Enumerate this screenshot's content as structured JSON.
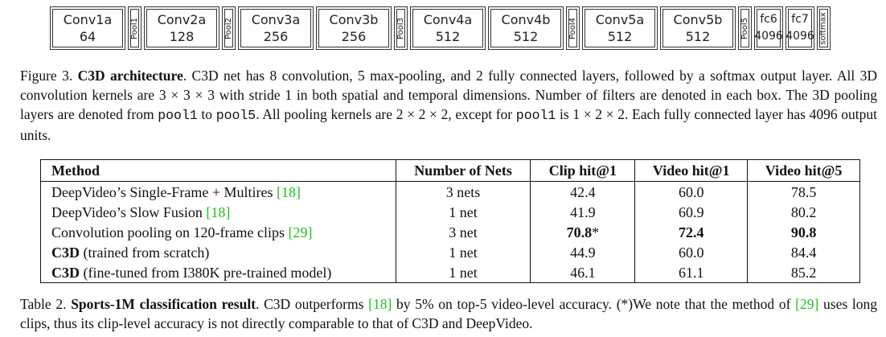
{
  "architecture": {
    "layers": [
      {
        "name": "Conv1a",
        "filters": "64",
        "kind": "conv"
      },
      {
        "name": "Pool1",
        "kind": "pool"
      },
      {
        "name": "Conv2a",
        "filters": "128",
        "kind": "conv"
      },
      {
        "name": "Pool2",
        "kind": "pool"
      },
      {
        "name": "Conv3a",
        "filters": "256",
        "kind": "conv"
      },
      {
        "name": "Conv3b",
        "filters": "256",
        "kind": "conv"
      },
      {
        "name": "Pool3",
        "kind": "pool"
      },
      {
        "name": "Conv4a",
        "filters": "512",
        "kind": "conv"
      },
      {
        "name": "Conv4b",
        "filters": "512",
        "kind": "conv"
      },
      {
        "name": "Pool4",
        "kind": "pool"
      },
      {
        "name": "Conv5a",
        "filters": "512",
        "kind": "conv"
      },
      {
        "name": "Conv5b",
        "filters": "512",
        "kind": "conv"
      },
      {
        "name": "Pool5",
        "kind": "pool"
      },
      {
        "name": "fc6",
        "filters": "4096",
        "kind": "fc"
      },
      {
        "name": "fc7",
        "filters": "4096",
        "kind": "fc"
      },
      {
        "name": "softmax",
        "kind": "pool"
      }
    ]
  },
  "figure_caption": [
    {
      "text": "Figure 3. "
    },
    {
      "text": "C3D architecture",
      "style": "bold"
    },
    {
      "text": ". C3D net has 8 convolution, 5 max-pooling, and 2 fully connected layers, followed by a softmax output layer. All 3D convolution kernels are 3 × 3 × 3 with stride 1 in both spatial and temporal dimensions. Number of filters are denoted in each box. The 3D pooling layers are denoted from "
    },
    {
      "text": "pool1",
      "style": "mono"
    },
    {
      "text": " to "
    },
    {
      "text": "pool5",
      "style": "mono"
    },
    {
      "text": ". All pooling kernels are 2 × 2 × 2, except for "
    },
    {
      "text": "pool1",
      "style": "mono"
    },
    {
      "text": " is 1 × 2 × 2. Each fully connected layer has 4096 output units."
    }
  ],
  "table": {
    "header": [
      "Method",
      "Number of Nets",
      "Clip hit@1",
      "Video hit@1",
      "Video hit@5"
    ],
    "rows": [
      [
        [
          {
            "text": "DeepVideo’s Single-Frame + Multires "
          },
          {
            "text": "[18]",
            "style": "ref"
          }
        ],
        [
          {
            "text": "3 nets"
          }
        ],
        [
          {
            "text": "42.4"
          }
        ],
        [
          {
            "text": "60.0"
          }
        ],
        [
          {
            "text": "78.5"
          }
        ]
      ],
      [
        [
          {
            "text": "DeepVideo’s Slow Fusion "
          },
          {
            "text": "[18]",
            "style": "ref"
          }
        ],
        [
          {
            "text": "1 net"
          }
        ],
        [
          {
            "text": "41.9"
          }
        ],
        [
          {
            "text": "60.9"
          }
        ],
        [
          {
            "text": "80.2"
          }
        ]
      ],
      [
        [
          {
            "text": "Convolution pooling on 120-frame clips "
          },
          {
            "text": "[29]",
            "style": "ref"
          }
        ],
        [
          {
            "text": "3 net"
          }
        ],
        [
          {
            "text": "70.8",
            "style": "bold"
          },
          {
            "text": "*"
          }
        ],
        [
          {
            "text": "72.4",
            "style": "bold"
          }
        ],
        [
          {
            "text": "90.8",
            "style": "bold"
          }
        ]
      ],
      [
        [
          {
            "text": "C3D",
            "style": "bold"
          },
          {
            "text": " (trained from scratch)"
          }
        ],
        [
          {
            "text": "1 net"
          }
        ],
        [
          {
            "text": "44.9"
          }
        ],
        [
          {
            "text": "60.0"
          }
        ],
        [
          {
            "text": "84.4"
          }
        ]
      ],
      [
        [
          {
            "text": "C3D",
            "style": "bold"
          },
          {
            "text": " (fine-tuned from I380K pre-trained model)"
          }
        ],
        [
          {
            "text": "1 net"
          }
        ],
        [
          {
            "text": "46.1"
          }
        ],
        [
          {
            "text": "61.1"
          }
        ],
        [
          {
            "text": "85.2"
          }
        ]
      ]
    ]
  },
  "table_caption": [
    {
      "text": "Table 2. "
    },
    {
      "text": "Sports-1M classification result",
      "style": "bold"
    },
    {
      "text": ". C3D outperforms "
    },
    {
      "text": "[18]",
      "style": "ref"
    },
    {
      "text": " by 5% on top-5 video-level accuracy. (*)We note that the method of "
    },
    {
      "text": "[29]",
      "style": "ref"
    },
    {
      "text": " uses long clips, thus its clip-level accuracy is not directly comparable to that of C3D and DeepVideo."
    }
  ]
}
